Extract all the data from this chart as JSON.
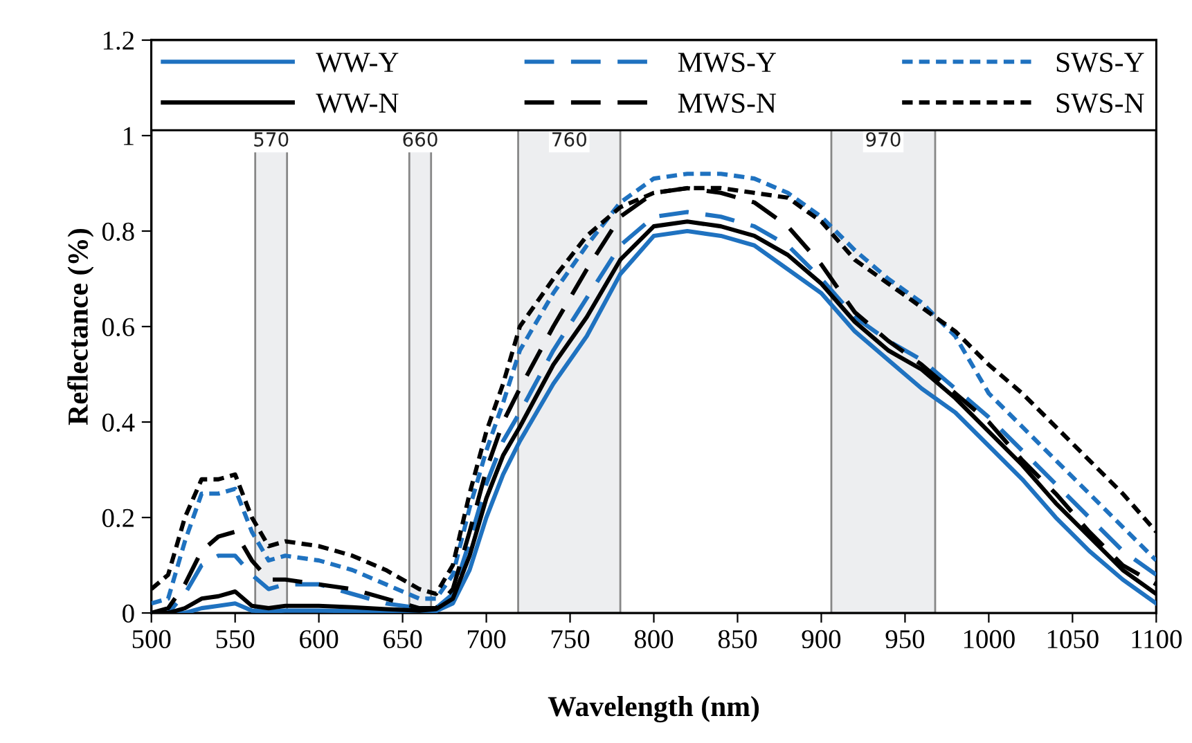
{
  "chart_data": {
    "type": "line",
    "xlabel": "Wavelength (nm)",
    "ylabel": "Reflectance (%)",
    "x": [
      500,
      510,
      520,
      530,
      540,
      550,
      560,
      570,
      580,
      600,
      620,
      640,
      660,
      670,
      680,
      690,
      700,
      710,
      720,
      740,
      760,
      780,
      800,
      820,
      840,
      860,
      880,
      900,
      920,
      940,
      960,
      980,
      1000,
      1020,
      1040,
      1060,
      1080,
      1100
    ],
    "series": [
      {
        "name": "WW-Y",
        "color": "#1f72c0",
        "line_style": "solid",
        "values": [
          0,
          0,
          0,
          0.01,
          0.015,
          0.02,
          0.005,
          0.003,
          0.005,
          0.005,
          0.004,
          0.003,
          0.002,
          0.004,
          0.02,
          0.09,
          0.2,
          0.29,
          0.36,
          0.48,
          0.58,
          0.71,
          0.79,
          0.8,
          0.79,
          0.77,
          0.72,
          0.67,
          0.59,
          0.53,
          0.47,
          0.42,
          0.35,
          0.28,
          0.2,
          0.13,
          0.07,
          0.02
        ]
      },
      {
        "name": "MWS-Y",
        "color": "#1f72c0",
        "line_style": "dashed",
        "values": [
          0,
          0,
          0.04,
          0.1,
          0.12,
          0.12,
          0.08,
          0.05,
          0.06,
          0.06,
          0.04,
          0.02,
          0.01,
          0.01,
          0.04,
          0.15,
          0.27,
          0.36,
          0.42,
          0.55,
          0.66,
          0.77,
          0.83,
          0.84,
          0.83,
          0.81,
          0.77,
          0.7,
          0.62,
          0.57,
          0.53,
          0.47,
          0.41,
          0.34,
          0.27,
          0.2,
          0.13,
          0.08
        ]
      },
      {
        "name": "SWS-Y",
        "color": "#1f72c0",
        "line_style": "dotted",
        "values": [
          0.02,
          0.03,
          0.15,
          0.25,
          0.25,
          0.26,
          0.17,
          0.11,
          0.12,
          0.11,
          0.09,
          0.06,
          0.03,
          0.03,
          0.08,
          0.22,
          0.34,
          0.44,
          0.55,
          0.67,
          0.77,
          0.86,
          0.91,
          0.92,
          0.92,
          0.91,
          0.88,
          0.83,
          0.76,
          0.7,
          0.65,
          0.58,
          0.46,
          0.39,
          0.32,
          0.25,
          0.18,
          0.11
        ]
      },
      {
        "name": "WW-N",
        "color": "#000000",
        "line_style": "solid",
        "values": [
          0,
          0,
          0.01,
          0.03,
          0.035,
          0.045,
          0.015,
          0.01,
          0.015,
          0.015,
          0.012,
          0.008,
          0.005,
          0.008,
          0.03,
          0.12,
          0.24,
          0.33,
          0.39,
          0.52,
          0.62,
          0.74,
          0.81,
          0.82,
          0.81,
          0.79,
          0.75,
          0.69,
          0.61,
          0.55,
          0.51,
          0.45,
          0.38,
          0.31,
          0.23,
          0.16,
          0.09,
          0.04
        ]
      },
      {
        "name": "MWS-N",
        "color": "#000000",
        "line_style": "dashed",
        "values": [
          0,
          0.01,
          0.06,
          0.13,
          0.16,
          0.17,
          0.11,
          0.07,
          0.07,
          0.06,
          0.05,
          0.03,
          0.01,
          0.01,
          0.05,
          0.17,
          0.3,
          0.4,
          0.47,
          0.6,
          0.72,
          0.83,
          0.88,
          0.89,
          0.88,
          0.86,
          0.81,
          0.73,
          0.63,
          0.57,
          0.52,
          0.46,
          0.4,
          0.32,
          0.25,
          0.17,
          0.1,
          0.06
        ]
      },
      {
        "name": "SWS-N",
        "color": "#000000",
        "line_style": "dotted",
        "values": [
          0.05,
          0.08,
          0.2,
          0.28,
          0.28,
          0.29,
          0.2,
          0.14,
          0.15,
          0.14,
          0.12,
          0.09,
          0.05,
          0.04,
          0.1,
          0.25,
          0.38,
          0.48,
          0.6,
          0.7,
          0.79,
          0.85,
          0.88,
          0.89,
          0.89,
          0.88,
          0.87,
          0.82,
          0.74,
          0.69,
          0.64,
          0.59,
          0.52,
          0.46,
          0.39,
          0.32,
          0.25,
          0.17
        ]
      }
    ],
    "xlim": [
      500,
      1100
    ],
    "xticks": [
      500,
      550,
      600,
      650,
      700,
      750,
      800,
      850,
      900,
      950,
      1000,
      1050,
      1100
    ],
    "ylim": [
      0,
      1.2
    ],
    "yticks": [
      0,
      0.2,
      0.4,
      0.6,
      0.8,
      1,
      1.2
    ],
    "bands": [
      {
        "axis": "x",
        "from": 562,
        "to": 581,
        "color": "#e6e7ea",
        "label": "570"
      },
      {
        "axis": "x",
        "from": 654,
        "to": 667,
        "color": "#e6e7ea",
        "label": "660"
      },
      {
        "axis": "x",
        "from": 719,
        "to": 780,
        "color": "#e6e7ea",
        "label": "760"
      },
      {
        "axis": "x",
        "from": 906,
        "to": 968,
        "color": "#e6e7ea",
        "label": "970"
      }
    ],
    "grid": false,
    "legend": "top",
    "marker": "none"
  }
}
